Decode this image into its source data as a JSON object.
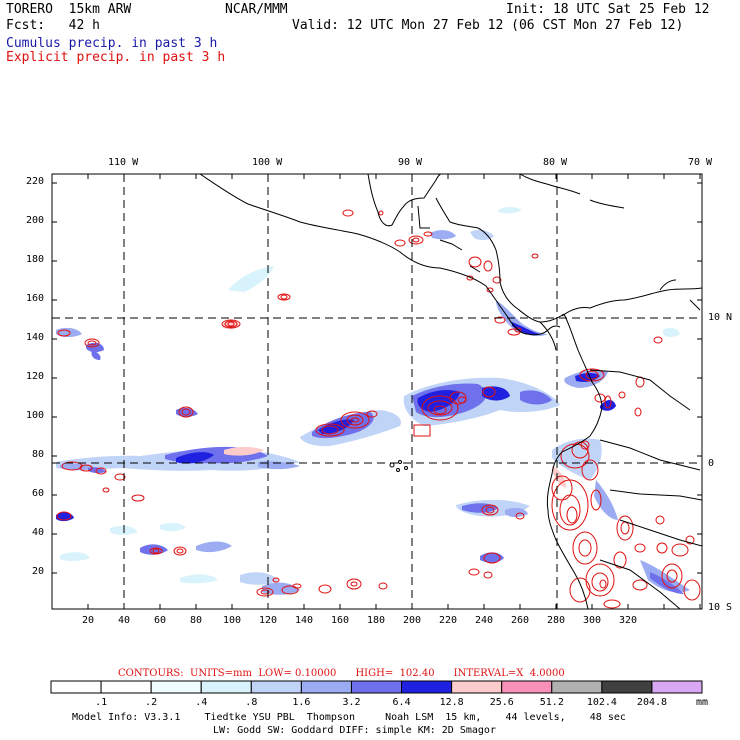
{
  "header": {
    "model": "TORERO  15km ARW",
    "org": "NCAR/MMM",
    "init": "Init: 18 UTC Sat 25 Feb 12",
    "fcst": "Fcst:   42 h",
    "valid": "Valid: 12 UTC Mon 27 Feb 12 (06 CST Mon 27 Feb 12)",
    "field_blue": "Cumulus precip. in past 3 h",
    "field_red": "Explicit precip. in past 3 h"
  },
  "colors": {
    "blue_text": "#1a1aa8",
    "red_text": "#e01010",
    "contour_red": "#e01010"
  },
  "map": {
    "lon_labels": [
      "110 W",
      "100 W",
      "90 W",
      "80 W",
      "70 W"
    ],
    "lat_labels": [
      "10 N",
      "0",
      "10 S"
    ],
    "y_ticks": [
      "220",
      "200",
      "180",
      "160",
      "140",
      "120",
      "100",
      "80",
      "60",
      "40",
      "20"
    ],
    "x_ticks": [
      "20",
      "40",
      "60",
      "80",
      "100",
      "120",
      "140",
      "160",
      "180",
      "200",
      "220",
      "240",
      "260",
      "280",
      "300",
      "320"
    ]
  },
  "contours_line": "CONTOURS:  UNITS=mm  LOW= 0.10000      HIGH=  102.40      INTERVAL=X  4.0000",
  "colorbar": {
    "unit": "mm",
    "labels": [
      ".1",
      ".2",
      ".4",
      ".8",
      "1.6",
      "3.2",
      "6.4",
      "12.8",
      "25.6",
      "51.2",
      "102.4",
      "204.8"
    ],
    "colors": [
      "#ffffff",
      "#ffffff",
      "#eefdff",
      "#d8f3fb",
      "#c0d4f8",
      "#9cacf2",
      "#6e70ec",
      "#2020e0",
      "#fccccc",
      "#f890b8",
      "#b0b0b0",
      "#404040",
      "#d8a8f4"
    ]
  },
  "footer": {
    "line1": "Model Info: V3.3.1    Tiedtke YSU PBL  Thompson     Noah LSM  15 km,    44 levels,    48 sec",
    "line2": "LW: Godd SW: Goddard DIFF: simple KM: 2D Smagor"
  }
}
